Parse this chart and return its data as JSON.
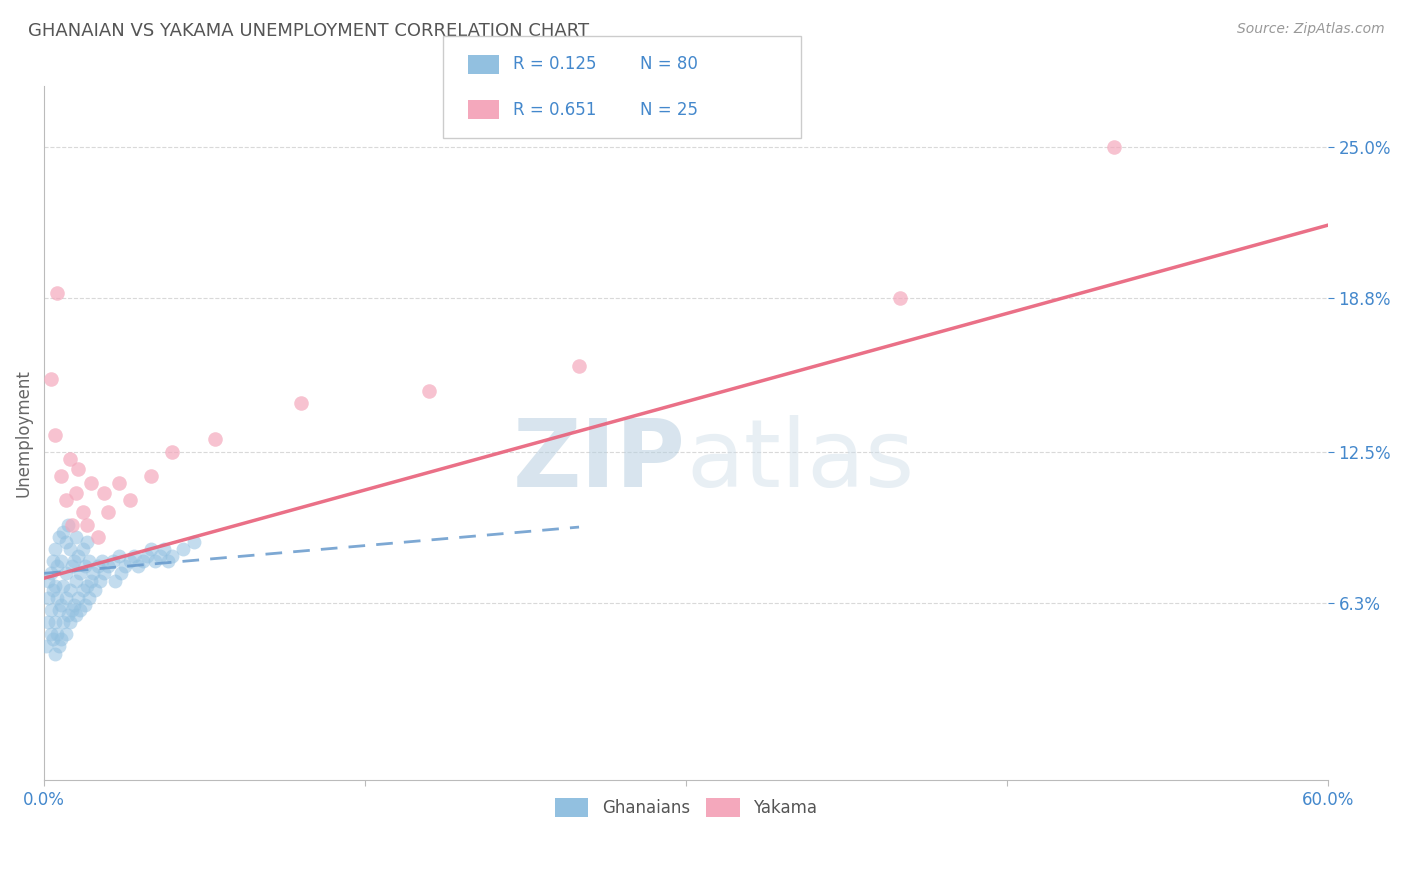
{
  "title": "GHANAIAN VS YAKAMA UNEMPLOYMENT CORRELATION CHART",
  "source": "Source: ZipAtlas.com",
  "ylabel": "Unemployment",
  "xlim": [
    0.0,
    0.6
  ],
  "ylim": [
    -0.01,
    0.275
  ],
  "yticks": [
    0.063,
    0.125,
    0.188,
    0.25
  ],
  "ytick_labels": [
    "6.3%",
    "12.5%",
    "18.8%",
    "25.0%"
  ],
  "xtick_positions": [
    0.0,
    0.15,
    0.3,
    0.45,
    0.6
  ],
  "xtick_labels": [
    "0.0%",
    "",
    "",
    "",
    "60.0%"
  ],
  "ghanaian_R": 0.125,
  "ghanaian_N": 80,
  "yakama_R": 0.651,
  "yakama_N": 25,
  "ghanaian_color": "#92c0e0",
  "yakama_color": "#f4a8bc",
  "ghanaian_trend_color": "#6699cc",
  "yakama_trend_color": "#e8607a",
  "background_color": "#ffffff",
  "grid_color": "#d0d0d0",
  "title_color": "#555555",
  "axis_label_color": "#4488cc",
  "watermark_color": "#dce8f0",
  "ghanaian_x": [
    0.001,
    0.002,
    0.002,
    0.002,
    0.003,
    0.003,
    0.003,
    0.004,
    0.004,
    0.004,
    0.005,
    0.005,
    0.005,
    0.005,
    0.006,
    0.006,
    0.006,
    0.007,
    0.007,
    0.007,
    0.008,
    0.008,
    0.008,
    0.009,
    0.009,
    0.009,
    0.01,
    0.01,
    0.01,
    0.01,
    0.011,
    0.011,
    0.012,
    0.012,
    0.012,
    0.013,
    0.013,
    0.014,
    0.014,
    0.015,
    0.015,
    0.015,
    0.016,
    0.016,
    0.017,
    0.017,
    0.018,
    0.018,
    0.019,
    0.019,
    0.02,
    0.02,
    0.021,
    0.021,
    0.022,
    0.023,
    0.024,
    0.025,
    0.026,
    0.027,
    0.028,
    0.03,
    0.032,
    0.033,
    0.035,
    0.036,
    0.038,
    0.04,
    0.042,
    0.044,
    0.046,
    0.048,
    0.05,
    0.052,
    0.054,
    0.056,
    0.058,
    0.06,
    0.065,
    0.07
  ],
  "ghanaian_y": [
    0.045,
    0.055,
    0.065,
    0.072,
    0.05,
    0.06,
    0.075,
    0.048,
    0.068,
    0.08,
    0.042,
    0.055,
    0.07,
    0.085,
    0.05,
    0.065,
    0.078,
    0.045,
    0.06,
    0.09,
    0.048,
    0.062,
    0.08,
    0.055,
    0.07,
    0.092,
    0.05,
    0.065,
    0.075,
    0.088,
    0.058,
    0.095,
    0.055,
    0.068,
    0.085,
    0.06,
    0.078,
    0.062,
    0.08,
    0.058,
    0.072,
    0.09,
    0.065,
    0.082,
    0.06,
    0.075,
    0.068,
    0.085,
    0.062,
    0.078,
    0.07,
    0.088,
    0.065,
    0.08,
    0.072,
    0.075,
    0.068,
    0.078,
    0.072,
    0.08,
    0.075,
    0.078,
    0.08,
    0.072,
    0.082,
    0.075,
    0.078,
    0.08,
    0.082,
    0.078,
    0.08,
    0.082,
    0.085,
    0.08,
    0.082,
    0.085,
    0.08,
    0.082,
    0.085,
    0.088
  ],
  "yakama_x": [
    0.003,
    0.005,
    0.006,
    0.008,
    0.01,
    0.012,
    0.013,
    0.015,
    0.016,
    0.018,
    0.02,
    0.022,
    0.025,
    0.028,
    0.03,
    0.035,
    0.04,
    0.05,
    0.06,
    0.08,
    0.12,
    0.18,
    0.25,
    0.4,
    0.5
  ],
  "yakama_y": [
    0.155,
    0.132,
    0.19,
    0.115,
    0.105,
    0.122,
    0.095,
    0.108,
    0.118,
    0.1,
    0.095,
    0.112,
    0.09,
    0.108,
    0.1,
    0.112,
    0.105,
    0.115,
    0.125,
    0.13,
    0.145,
    0.15,
    0.16,
    0.188,
    0.25
  ],
  "gh_trend_x0": 0.0,
  "gh_trend_y0": 0.075,
  "gh_trend_x1": 0.25,
  "gh_trend_y1": 0.094,
  "ya_trend_x0": 0.0,
  "ya_trend_y0": 0.073,
  "ya_trend_x1": 0.6,
  "ya_trend_y1": 0.218
}
